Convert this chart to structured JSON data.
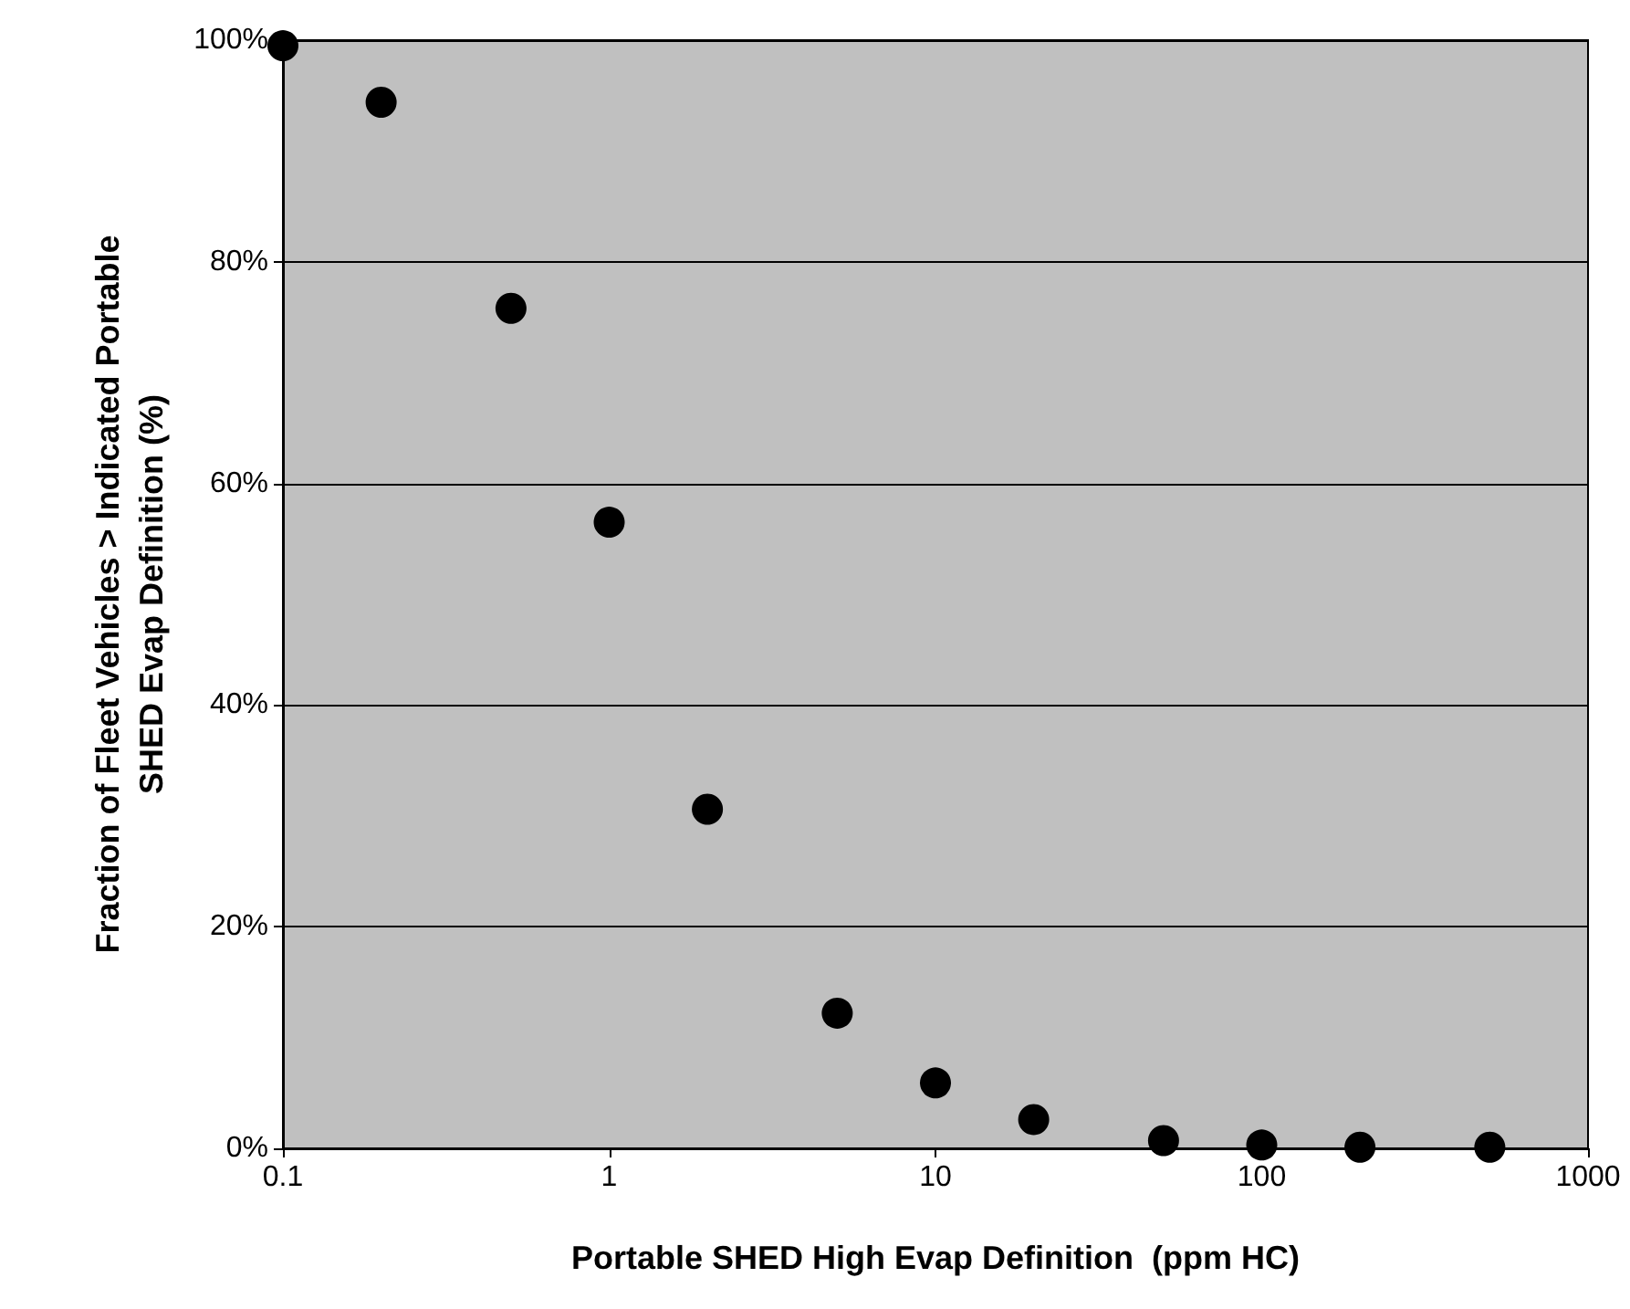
{
  "chart_data": {
    "type": "scatter",
    "xlabel": "Portable SHED High Evap Definition  (ppm HC)",
    "ylabel": "Fraction of Fleet Vehicles > Indicated Portable SHED Evap Definition (%)",
    "x": [
      0.1,
      0.2,
      0.5,
      1,
      2,
      5,
      10,
      20,
      50,
      100,
      200,
      500
    ],
    "series": [
      {
        "color": "#000000",
        "values": [
          99.5,
          94.4,
          75.8,
          56.5,
          30.6,
          12.2,
          5.9,
          2.6,
          0.7,
          0.3,
          0.1,
          0.1
        ]
      }
    ],
    "log": "x",
    "xlim": [
      0.1,
      1000
    ],
    "xticks": [
      0.1,
      1,
      10,
      100,
      1000
    ],
    "ylim": [
      0,
      100
    ],
    "yticks": [
      {
        "value": 0,
        "label": "0%"
      },
      {
        "value": 20,
        "label": "20%"
      },
      {
        "value": 40,
        "label": "40%"
      },
      {
        "value": 60,
        "label": "60%"
      },
      {
        "value": 80,
        "label": "80%"
      },
      {
        "value": 100,
        "label": "100%"
      }
    ],
    "grid": "y",
    "marker": "circle"
  }
}
